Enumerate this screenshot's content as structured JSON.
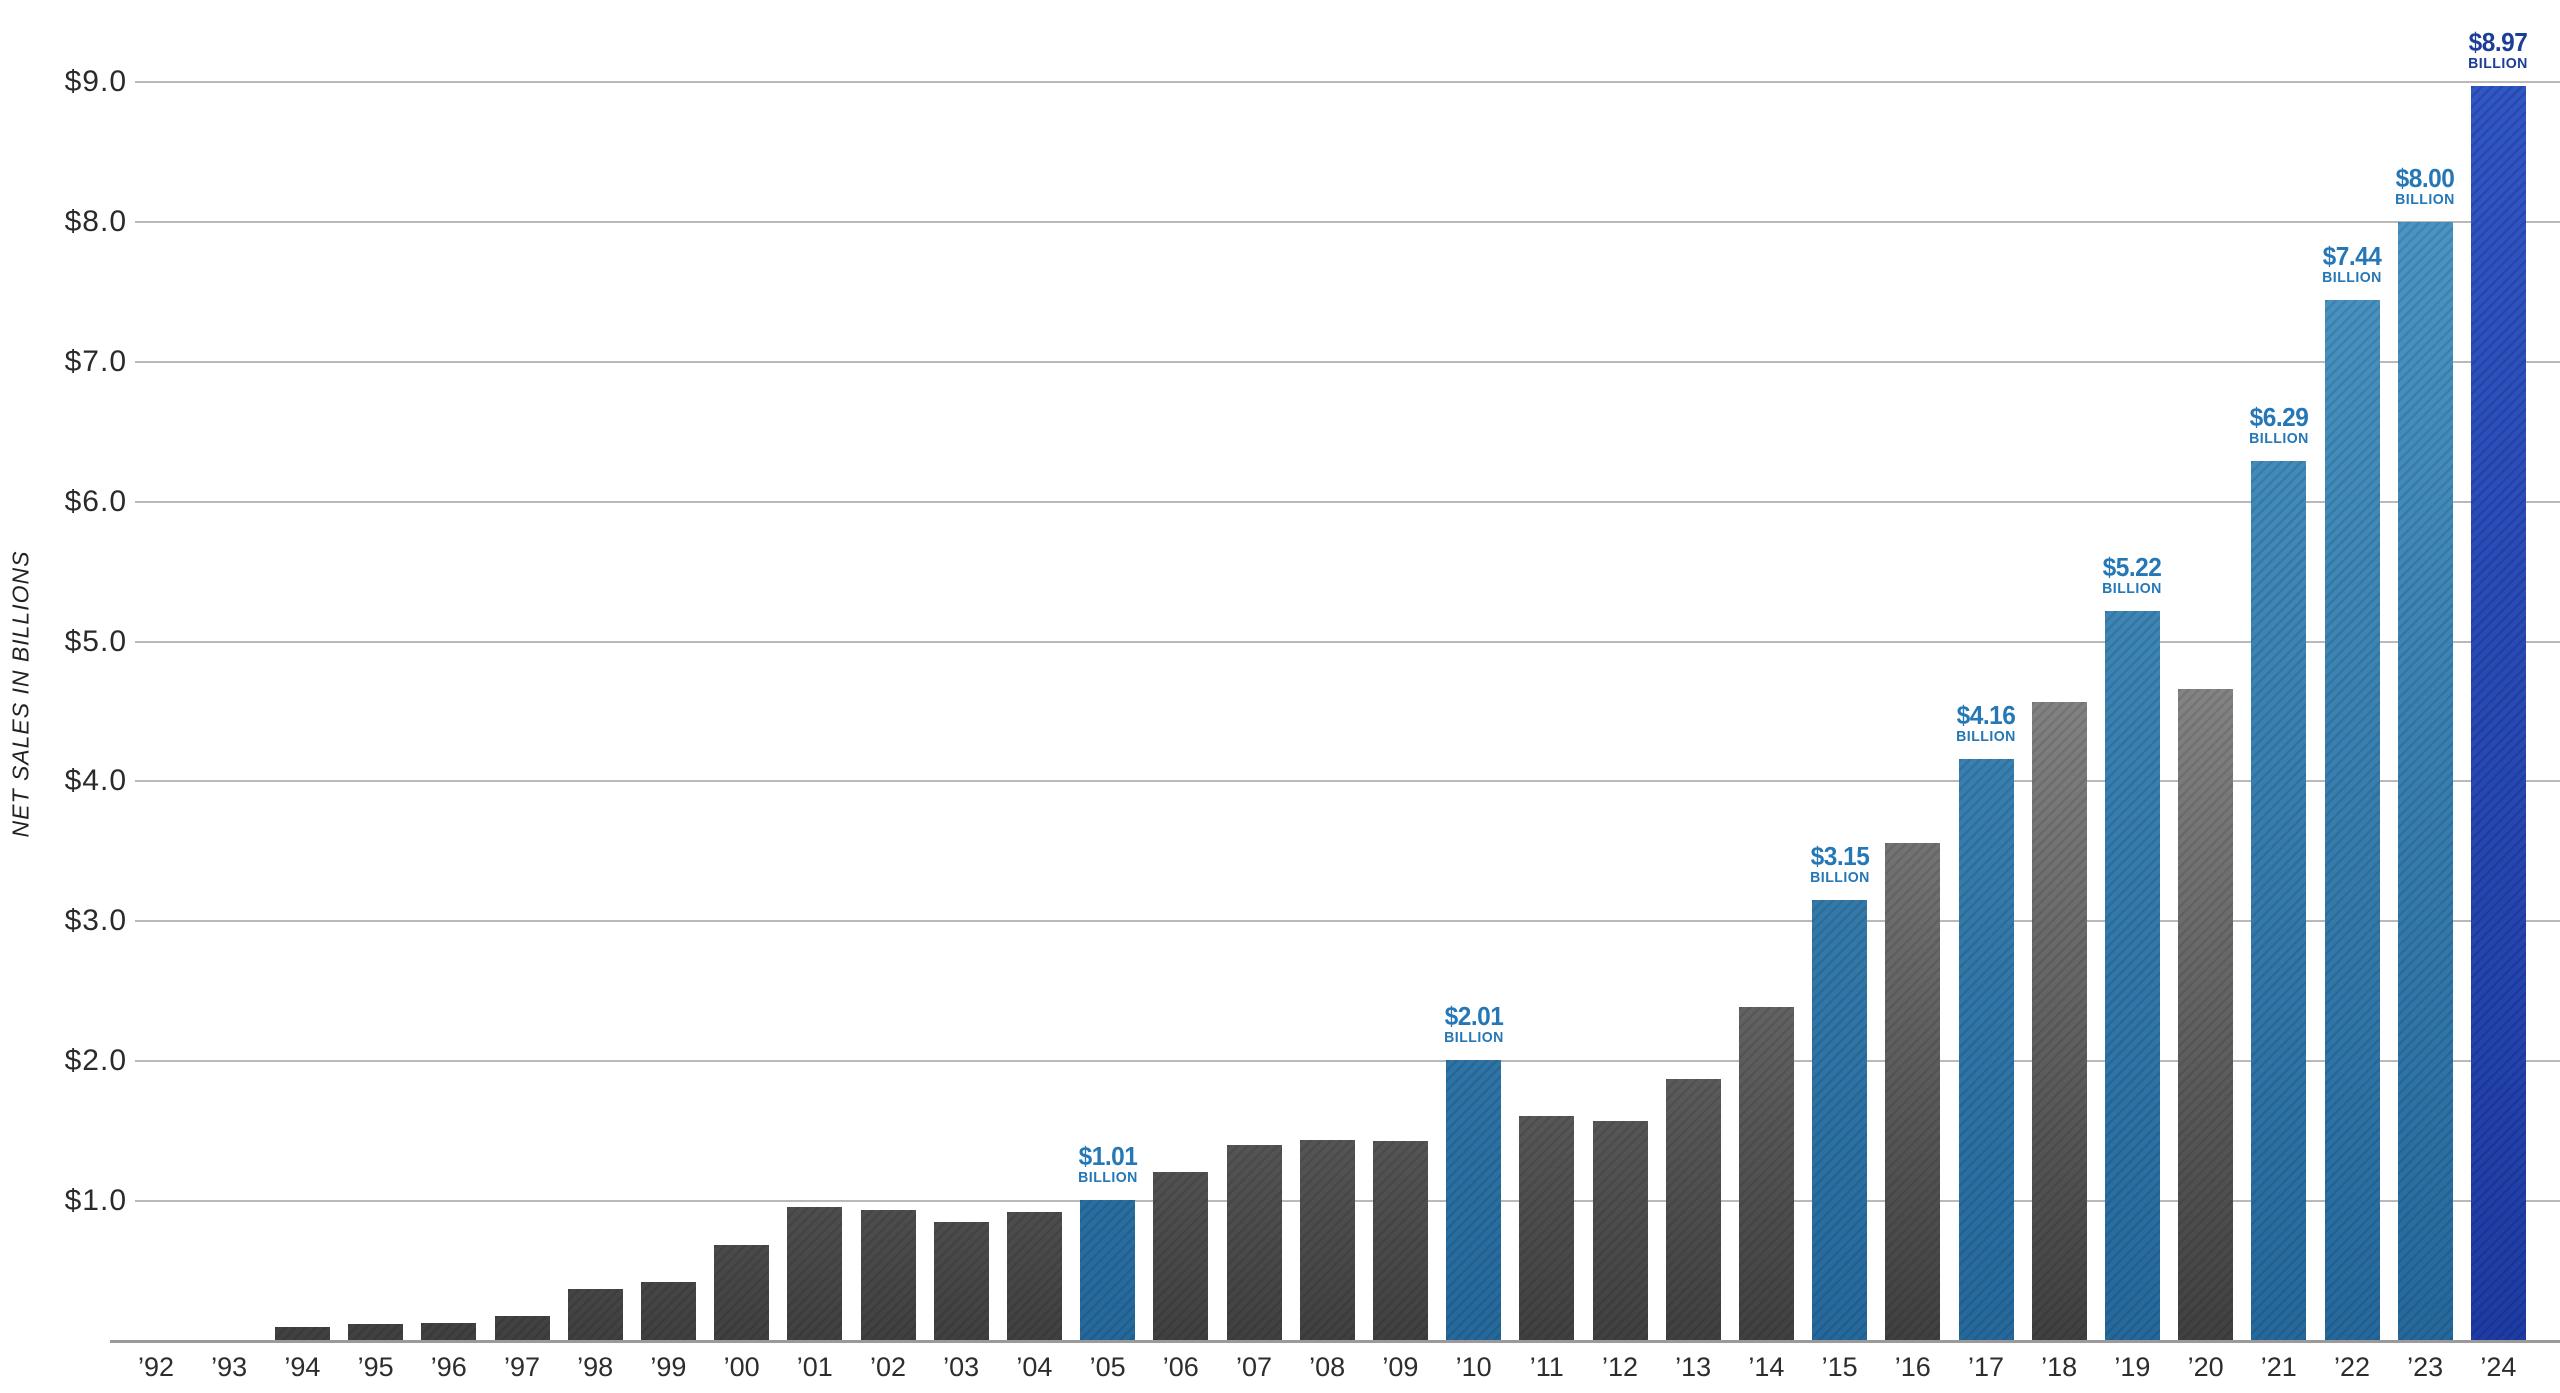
{
  "chart_data": {
    "type": "bar",
    "title": "",
    "xlabel": "",
    "ylabel": "NET SALES IN BILLIONS",
    "ylim": [
      0,
      9.35
    ],
    "grid": "horizontal",
    "legend": "none",
    "y_ticks": [
      {
        "label": "$9.0",
        "value": 9
      },
      {
        "label": "$8.0",
        "value": 8
      },
      {
        "label": "$7.0",
        "value": 7
      },
      {
        "label": "$6.0",
        "value": 6
      },
      {
        "label": "$5.0",
        "value": 5
      },
      {
        "label": "$4.0",
        "value": 4
      },
      {
        "label": "$3.0",
        "value": 3
      },
      {
        "label": "$2.0",
        "value": 2
      },
      {
        "label": "$1.0",
        "value": 1
      }
    ],
    "bars": [
      {
        "year": "’92",
        "value": 0.0,
        "kind": "gray"
      },
      {
        "year": "’93",
        "value": 0.0,
        "kind": "gray"
      },
      {
        "year": "’94",
        "value": 0.1,
        "kind": "gray"
      },
      {
        "year": "’95",
        "value": 0.12,
        "kind": "gray"
      },
      {
        "year": "’96",
        "value": 0.13,
        "kind": "gray"
      },
      {
        "year": "’97",
        "value": 0.18,
        "kind": "gray"
      },
      {
        "year": "’98",
        "value": 0.37,
        "kind": "gray"
      },
      {
        "year": "’99",
        "value": 0.42,
        "kind": "gray"
      },
      {
        "year": "’00",
        "value": 0.69,
        "kind": "gray"
      },
      {
        "year": "’01",
        "value": 0.96,
        "kind": "gray"
      },
      {
        "year": "’02",
        "value": 0.94,
        "kind": "gray"
      },
      {
        "year": "’03",
        "value": 0.85,
        "kind": "gray"
      },
      {
        "year": "’04",
        "value": 0.92,
        "kind": "gray"
      },
      {
        "year": "’05",
        "value": 1.01,
        "kind": "blue",
        "label": "$1.01",
        "label_sub": "BILLION"
      },
      {
        "year": "’06",
        "value": 1.21,
        "kind": "gray"
      },
      {
        "year": "’07",
        "value": 1.4,
        "kind": "gray"
      },
      {
        "year": "’08",
        "value": 1.44,
        "kind": "gray"
      },
      {
        "year": "’09",
        "value": 1.43,
        "kind": "gray"
      },
      {
        "year": "’10",
        "value": 2.01,
        "kind": "blue",
        "label": "$2.01",
        "label_sub": "BILLION"
      },
      {
        "year": "’11",
        "value": 1.61,
        "kind": "gray"
      },
      {
        "year": "’12",
        "value": 1.57,
        "kind": "gray"
      },
      {
        "year": "’13",
        "value": 1.87,
        "kind": "gray"
      },
      {
        "year": "’14",
        "value": 2.39,
        "kind": "gray"
      },
      {
        "year": "’15",
        "value": 3.15,
        "kind": "blue",
        "label": "$3.15",
        "label_sub": "BILLION"
      },
      {
        "year": "’16",
        "value": 3.56,
        "kind": "gray"
      },
      {
        "year": "’17",
        "value": 4.16,
        "kind": "blue",
        "label": "$4.16",
        "label_sub": "BILLION"
      },
      {
        "year": "’18",
        "value": 4.57,
        "kind": "gray"
      },
      {
        "year": "’19",
        "value": 5.22,
        "kind": "blue",
        "label": "$5.22",
        "label_sub": "BILLION"
      },
      {
        "year": "’20",
        "value": 4.66,
        "kind": "gray"
      },
      {
        "year": "’21",
        "value": 6.29,
        "kind": "blue",
        "label": "$6.29",
        "label_sub": "BILLION"
      },
      {
        "year": "’22",
        "value": 7.44,
        "kind": "blue",
        "label": "$7.44",
        "label_sub": "BILLION"
      },
      {
        "year": "’23",
        "value": 8.0,
        "kind": "blue",
        "label": "$8.00",
        "label_sub": "BILLION"
      },
      {
        "year": "’24",
        "value": 8.97,
        "kind": "navy",
        "label": "$8.97",
        "label_sub": "BILLION"
      }
    ]
  },
  "colors": {
    "background": "#ffffff",
    "gridline": "#b9b9b9",
    "baseline": "#9a9a9a",
    "y_tick_text": "#2a2a2a",
    "x_tick_text": "#2d2d2d",
    "y_title_text": "#222222",
    "label_blue": "#2577b6",
    "label_navy": "#1d3e97",
    "bar_gray_bottom": "#404040",
    "bar_gray_top": "#c2c2c2",
    "bar_blue_bottom": "#25699c",
    "bar_blue_top": "#4e9ac8",
    "bar_navy_bottom": "#1e3ca6",
    "bar_navy_top": "#3156c6"
  }
}
